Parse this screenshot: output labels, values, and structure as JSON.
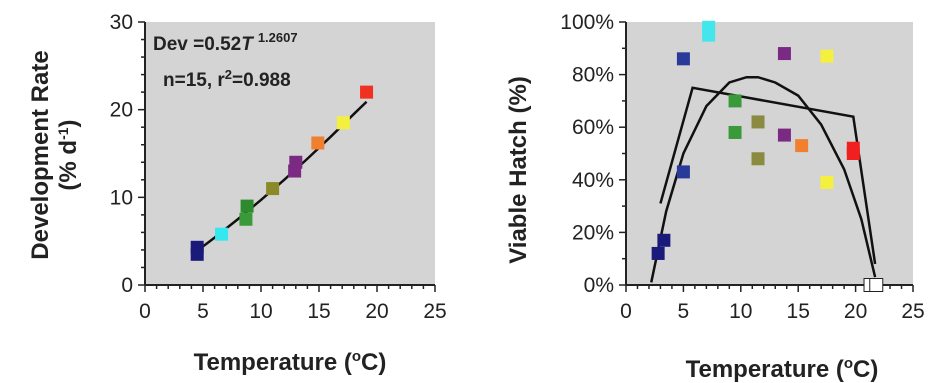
{
  "chart_data": [
    {
      "type": "scatter",
      "title": "",
      "xlabel": "Temperature (",
      "xlabel_sup": "o",
      "xlabel_tail": "C)",
      "ylabel_line1": "Development Rate",
      "ylabel_line2": "(% d",
      "ylabel_sup": "-1",
      "ylabel_tail": ")",
      "xlim": [
        0,
        25
      ],
      "ylim": [
        0,
        30
      ],
      "xticks": [
        "0",
        "5",
        "10",
        "15",
        "20",
        "25"
      ],
      "yticks": [
        "0",
        "10",
        "20",
        "30"
      ],
      "annotation_eq": "Dev =0.52",
      "annotation_T": "T",
      "annotation_exp": "1.2607",
      "annotation_stats": "n=15, r",
      "annotation_stats_sup": "2",
      "annotation_stats_tail": "=0.988",
      "points": [
        {
          "x": 4.5,
          "y": 3.5,
          "color": "#1a1a7a"
        },
        {
          "x": 4.5,
          "y": 4.3,
          "color": "#1a1a7a"
        },
        {
          "x": 6.6,
          "y": 5.8,
          "color": "#33e8ee"
        },
        {
          "x": 8.7,
          "y": 7.5,
          "color": "#3a9a3a"
        },
        {
          "x": 8.8,
          "y": 9.0,
          "color": "#2e8a2e"
        },
        {
          "x": 11.0,
          "y": 11.0,
          "color": "#8a8a28"
        },
        {
          "x": 12.9,
          "y": 13.0,
          "color": "#7a2a82"
        },
        {
          "x": 13.0,
          "y": 14.0,
          "color": "#7a2a82"
        },
        {
          "x": 14.9,
          "y": 16.2,
          "color": "#f08030"
        },
        {
          "x": 17.1,
          "y": 18.5,
          "color": "#f4f040"
        },
        {
          "x": 19.1,
          "y": 22.0,
          "color": "#f03020"
        }
      ],
      "fit_curve": [
        [
          4.3,
          3.7
        ],
        [
          6,
          5.4
        ],
        [
          8,
          7.5
        ],
        [
          10,
          9.7
        ],
        [
          12,
          12.0
        ],
        [
          14,
          14.4
        ],
        [
          16,
          16.9
        ],
        [
          18,
          19.5
        ],
        [
          19.1,
          20.9
        ]
      ]
    },
    {
      "type": "scatter",
      "title": "",
      "xlabel": "Temperature (",
      "xlabel_sup": "o",
      "xlabel_tail": "C)",
      "ylabel": "Viable Hatch (%)",
      "xlim": [
        0,
        25
      ],
      "ylim": [
        0,
        100
      ],
      "xticks": [
        "0",
        "5",
        "10",
        "15",
        "20",
        "25"
      ],
      "yticks": [
        "0%",
        "20%",
        "40%",
        "60%",
        "80%",
        "100%"
      ],
      "points": [
        {
          "x": 2.8,
          "y": 12,
          "color": "#1a1a7a"
        },
        {
          "x": 3.3,
          "y": 17,
          "color": "#1a1a7a"
        },
        {
          "x": 5.0,
          "y": 43,
          "color": "#2a3a9a"
        },
        {
          "x": 5.0,
          "y": 86,
          "color": "#2a3a9a"
        },
        {
          "x": 7.2,
          "y": 95,
          "color": "#44e6ee"
        },
        {
          "x": 7.2,
          "y": 98,
          "color": "#44e6ee"
        },
        {
          "x": 9.5,
          "y": 58,
          "color": "#3a9a3a"
        },
        {
          "x": 9.5,
          "y": 70,
          "color": "#3a9a3a"
        },
        {
          "x": 11.5,
          "y": 48,
          "color": "#8a8a40"
        },
        {
          "x": 11.5,
          "y": 62,
          "color": "#8a8a40"
        },
        {
          "x": 13.8,
          "y": 57,
          "color": "#7a2a82"
        },
        {
          "x": 13.8,
          "y": 88,
          "color": "#7a2a82"
        },
        {
          "x": 15.3,
          "y": 53,
          "color": "#f08030"
        },
        {
          "x": 17.5,
          "y": 39,
          "color": "#f4f040"
        },
        {
          "x": 17.5,
          "y": 87,
          "color": "#f4f040"
        },
        {
          "x": 19.8,
          "y": 50,
          "color": "#f02020"
        },
        {
          "x": 19.8,
          "y": 52,
          "color": "#f02020"
        },
        {
          "x": 21.3,
          "y": 0,
          "color": "#ffffff"
        },
        {
          "x": 21.8,
          "y": 0,
          "color": "#ffffff"
        }
      ],
      "fit_polyline": [
        [
          3,
          31
        ],
        [
          5.8,
          75
        ],
        [
          19.8,
          64
        ],
        [
          21.7,
          8
        ]
      ],
      "fit_parabola": [
        [
          2.2,
          1
        ],
        [
          3.5,
          28
        ],
        [
          5,
          50
        ],
        [
          7,
          68
        ],
        [
          9,
          77
        ],
        [
          10.5,
          79
        ],
        [
          11.5,
          79
        ],
        [
          13,
          77
        ],
        [
          15,
          72
        ],
        [
          17,
          61
        ],
        [
          19,
          44
        ],
        [
          20.5,
          25
        ],
        [
          21.7,
          3
        ]
      ]
    }
  ]
}
